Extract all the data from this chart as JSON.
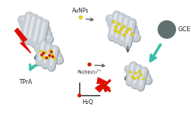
{
  "bg_color": "#ffffff",
  "fiber_color": "#c8ced4",
  "fiber_highlight": "#e8ecf0",
  "fiber_shadow": "#9aa4aa",
  "aunp_color": "#eedc00",
  "aunp_edge": "#c8b400",
  "red_dot_color": "#cc2000",
  "electrode_color": "#607070",
  "electrode_light": "#7a9090",
  "gce_color": "#607070",
  "arrow_teal": "#3dbda8",
  "arrow_dark": "#555555",
  "red_arrow_color": "#dd1000",
  "label_aunps": "AuNPs",
  "label_gce": "GCE",
  "label_tpra": "TPrA",
  "label_rubpy": "Ru(bpy)₃²⁺",
  "label_h2q": "H₂Q"
}
